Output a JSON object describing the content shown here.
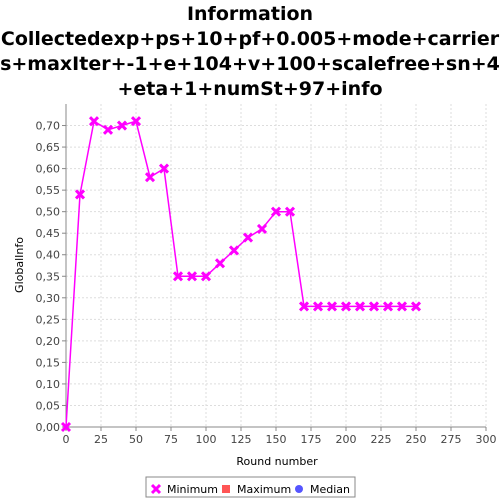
{
  "chart_data": {
    "type": "line",
    "title": "Information Collectedexp+ps+10+pf+0.005+mode+carriers+maxIter+-1+e+104+v+100+scalefree+sn+4+eta+1+numSt+97+info",
    "xlabel": "Round number",
    "ylabel": "GlobalInfo",
    "xlim": [
      0,
      300
    ],
    "ylim": [
      0,
      0.75
    ],
    "x_ticks": [
      0,
      25,
      50,
      75,
      100,
      125,
      150,
      175,
      200,
      225,
      250,
      275,
      300
    ],
    "y_ticks": [
      "0,00",
      "0,05",
      "0,10",
      "0,15",
      "0,20",
      "0,25",
      "0,30",
      "0,35",
      "0,40",
      "0,45",
      "0,50",
      "0,55",
      "0,60",
      "0,65",
      "0,70"
    ],
    "grid": true,
    "legend_position": "bottom",
    "series": [
      {
        "name": "Minimum",
        "color": "#ff00ff",
        "marker": "x",
        "x": [
          0,
          10,
          20,
          30,
          40,
          50,
          60,
          70,
          80,
          90,
          100,
          110,
          120,
          130,
          140,
          150,
          160,
          170,
          180,
          190,
          200,
          210,
          220,
          230,
          240,
          250
        ],
        "y": [
          0.0,
          0.54,
          0.71,
          0.69,
          0.7,
          0.71,
          0.58,
          0.6,
          0.35,
          0.35,
          0.35,
          0.38,
          0.41,
          0.44,
          0.46,
          0.5,
          0.5,
          0.28,
          0.28,
          0.28,
          0.28,
          0.28,
          0.28,
          0.28,
          0.28,
          0.28
        ]
      },
      {
        "name": "Maximum",
        "color": "#ff5555",
        "marker": "square",
        "x": [],
        "y": []
      },
      {
        "name": "Median",
        "color": "#5555ff",
        "marker": "circle",
        "x": [],
        "y": []
      }
    ]
  }
}
